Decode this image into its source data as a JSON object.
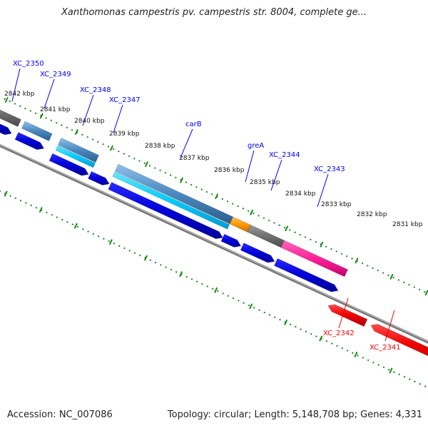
{
  "title": "Xanthomonas campestris pv. campestris str. 8004, complete ge...",
  "footer": {
    "accession": "Accession: NC_007086",
    "summary": "Topology: circular; Length: 5,148,708 bp; Genes: 4,331"
  },
  "colors": {
    "backbone": "#888888",
    "tick": "#1a8a1a",
    "forward_gene": "#0000ee",
    "reverse_gene": "#ee0000",
    "cds_blue": "#5aa0d8",
    "cds_cyan": "#00ccff",
    "rna_orange": "#ff9900",
    "misc_gray": "#707070",
    "misc_pink": "#ff2299"
  },
  "scale_labels": [
    "2842 kbp",
    "2841 kbp",
    "2840 kbp",
    "2839 kbp",
    "2838 kbp",
    "2837 kbp",
    "2836 kbp",
    "2835 kbp",
    "2834 kbp",
    "2833 kbp",
    "2832 kbp",
    "2831 kbp"
  ],
  "gene_labels": {
    "forward": [
      "XC_2350",
      "XC_2349",
      "XC_2348",
      "XC_2347",
      "carB",
      "greA",
      "XC_2344",
      "XC_2343"
    ],
    "reverse": [
      "XC_2342",
      "XC_2341"
    ]
  }
}
